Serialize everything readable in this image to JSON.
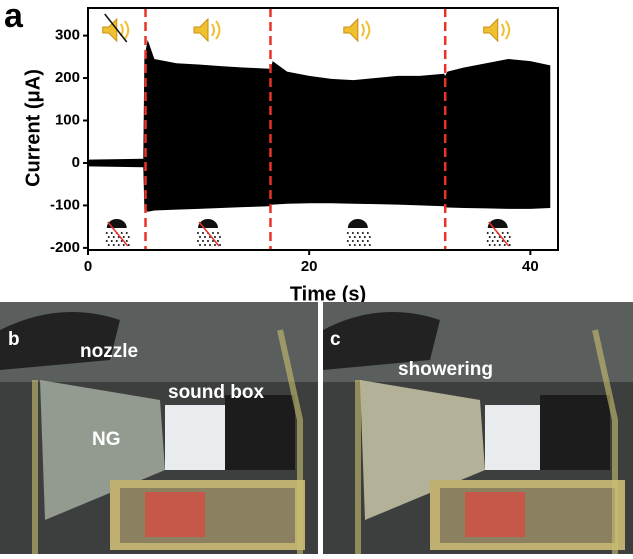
{
  "chart_data": {
    "type": "area",
    "panel_label": "a",
    "xlabel": "Time (s)",
    "ylabel": "Current (μA)",
    "x": [
      0,
      5,
      5.1,
      5.4,
      6,
      8,
      10,
      12,
      14,
      16.4,
      16.5,
      16.7,
      18,
      20,
      22,
      24,
      26,
      28,
      30,
      32.2,
      32.3,
      32.5,
      34,
      36,
      38,
      40,
      41.8
    ],
    "series": [
      {
        "color": "#000000",
        "values": [
          8,
          10,
          250,
          290,
          245,
          235,
          232,
          228,
          225,
          222,
          220,
          240,
          215,
          205,
          198,
          195,
          200,
          205,
          205,
          210,
          205,
          215,
          225,
          235,
          245,
          240,
          230
        ]
      },
      {
        "color": "#000000",
        "values": [
          -8,
          -10,
          -110,
          -115,
          -112,
          -110,
          -108,
          -106,
          -104,
          -102,
          -100,
          -98,
          -96,
          -95,
          -95,
          -96,
          -97,
          -98,
          -100,
          -102,
          -104,
          -105,
          -106,
          -107,
          -108,
          -108,
          -106
        ]
      }
    ],
    "markers": [
      5.2,
      16.5,
      32.3
    ],
    "marker_color": "#e8322a",
    "xlim": [
      0,
      42.5
    ],
    "ylim": [
      -205,
      365
    ],
    "xticks": [
      0,
      20,
      40
    ],
    "yticks": [
      -200,
      -100,
      0,
      100,
      200,
      300
    ]
  },
  "photos": [
    {
      "panel_label": "b",
      "labels": [
        "nozzle",
        "sound box",
        "NG"
      ]
    },
    {
      "panel_label": "c",
      "labels": [
        "showering"
      ]
    }
  ]
}
